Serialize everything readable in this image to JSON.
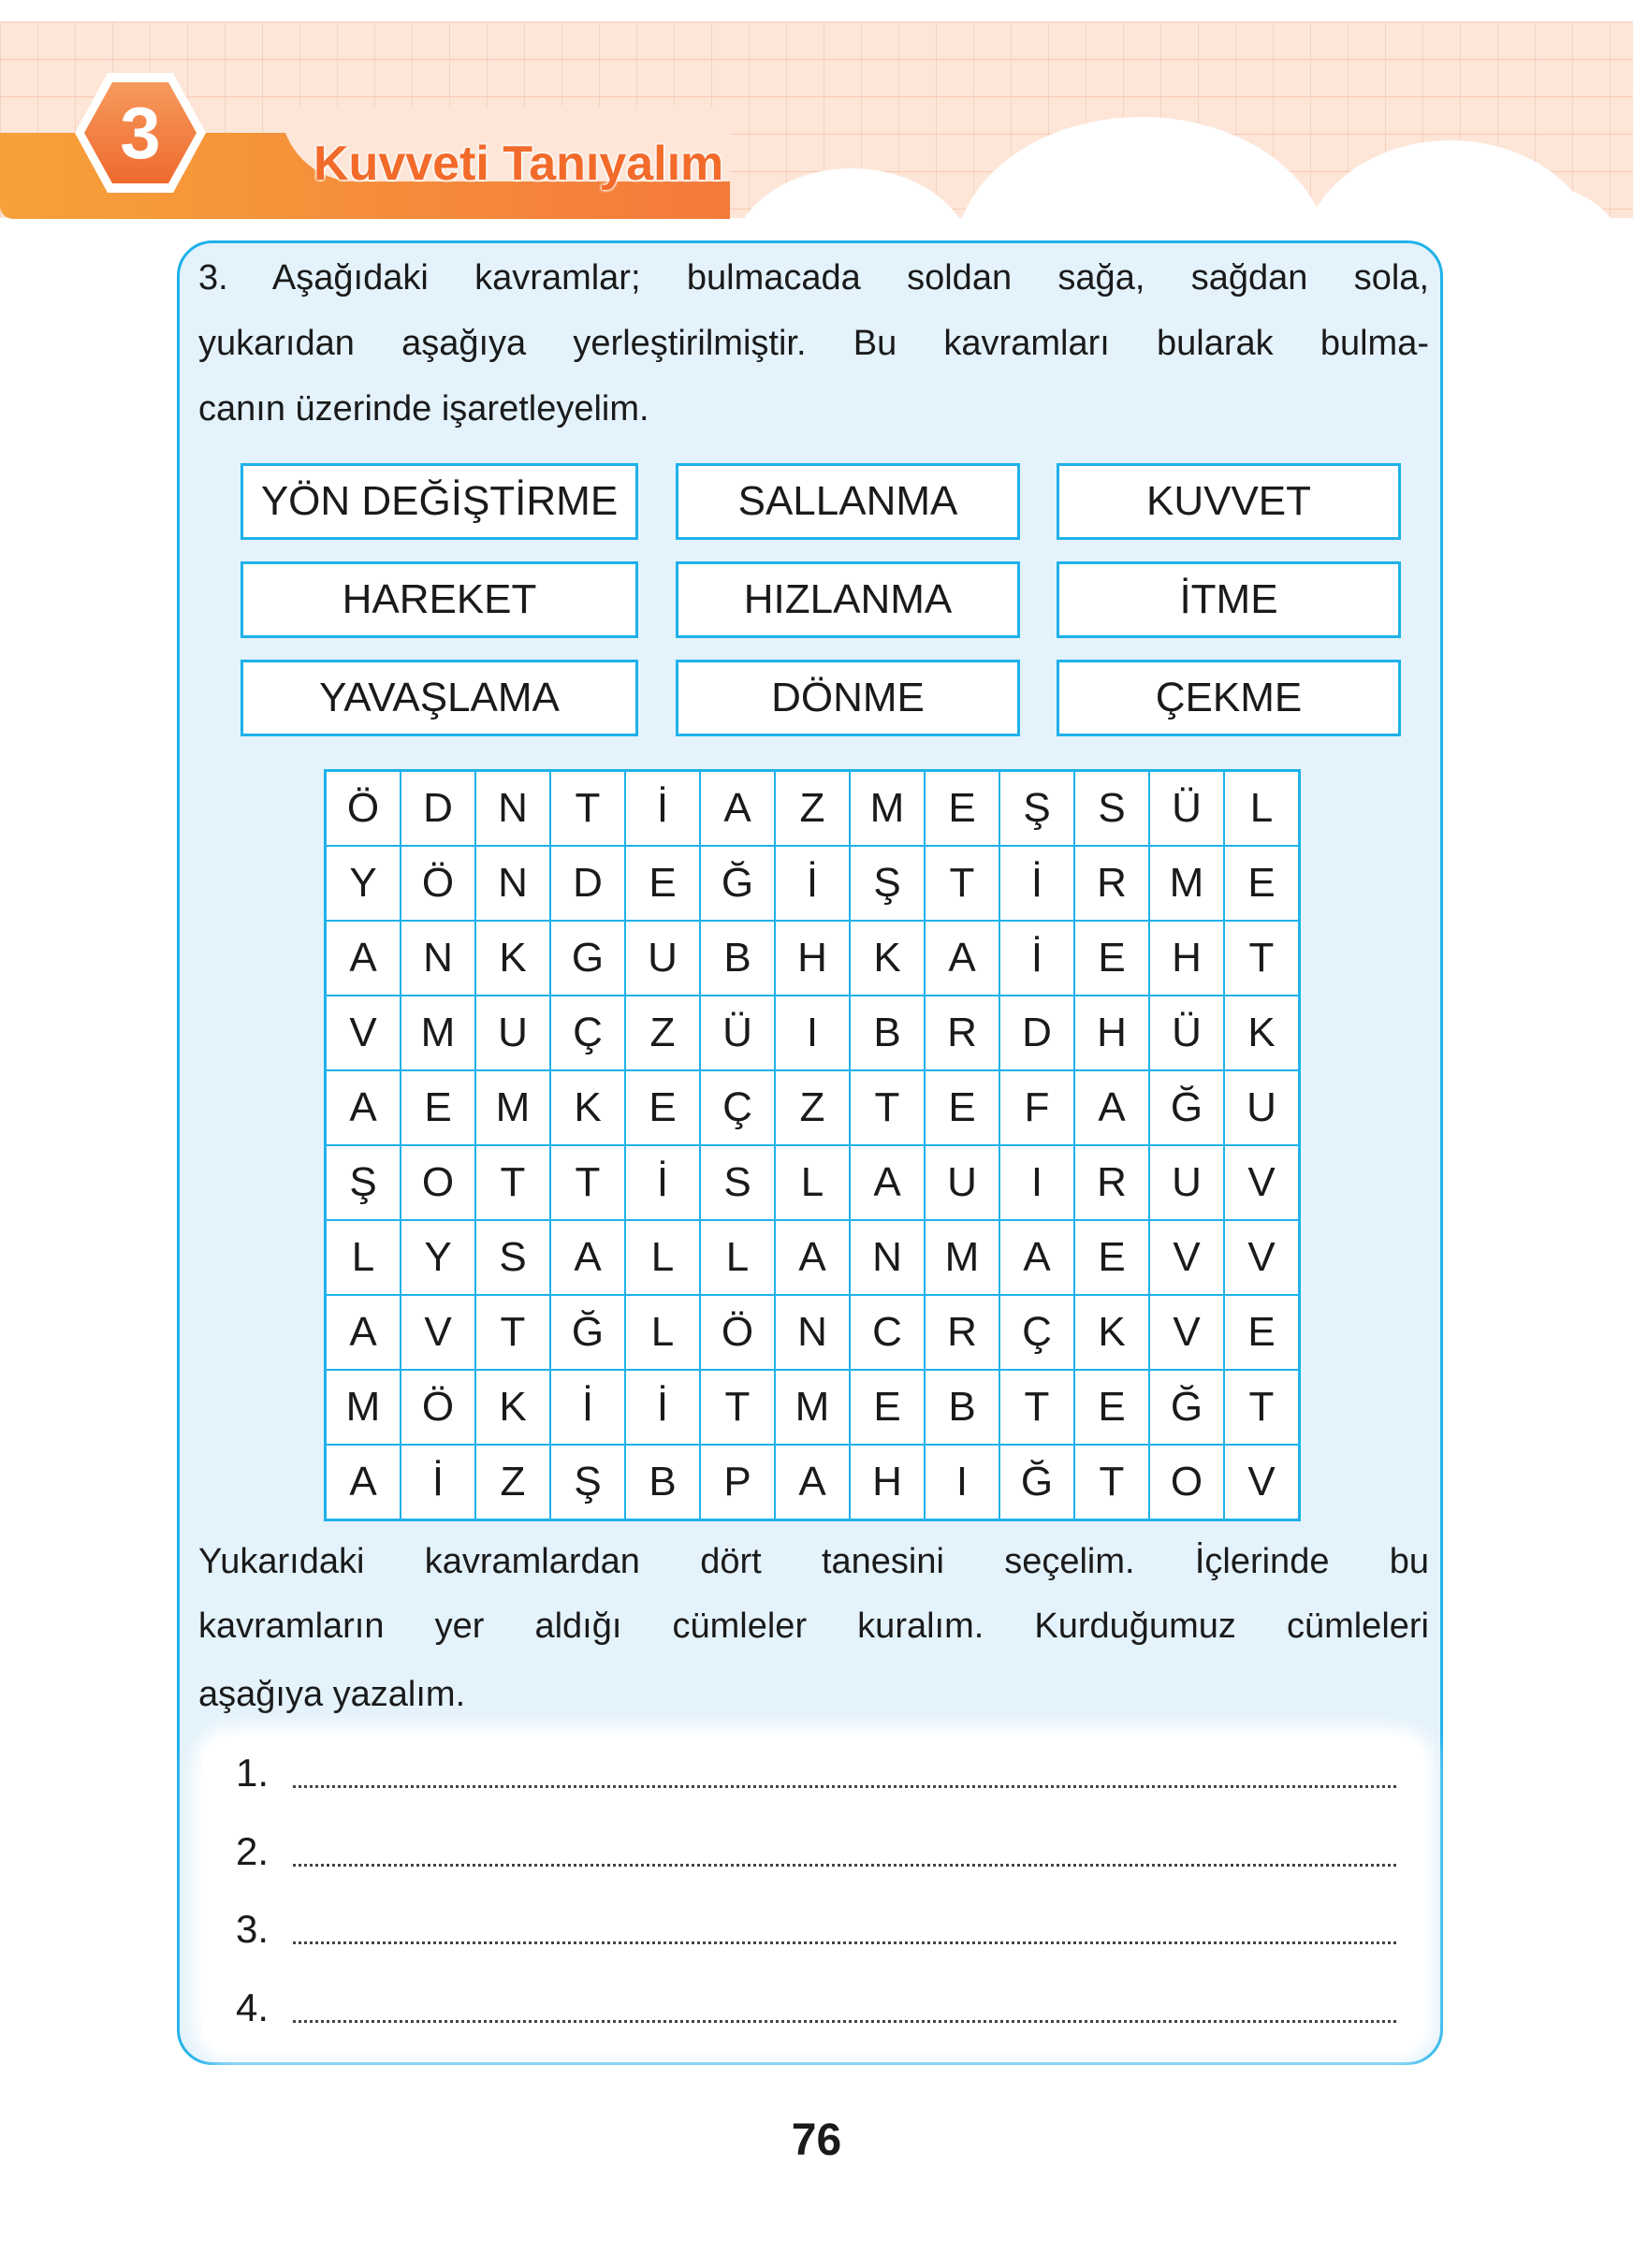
{
  "header": {
    "unit_number": "3",
    "title": "Kuvveti Tanıyalım",
    "accent_color": "#f26b2a",
    "border_color": "#1fb1ea"
  },
  "instruction": {
    "lines": [
      "3. Aşağıdaki kavramlar; bulmacada soldan sağa, sağdan sola,",
      "yukarıdan aşağıya yerleştirilmiştir. Bu kavramları bularak bulma-",
      "canın üzerinde işaretleyelim."
    ]
  },
  "words": [
    "YÖN DEĞİŞTİRME",
    "SALLANMA",
    "KUVVET",
    "HAREKET",
    "HIZLANMA",
    "İTME",
    "YAVAŞLAMA",
    "DÖNME",
    "ÇEKME"
  ],
  "grid": [
    [
      "Ö",
      "D",
      "N",
      "T",
      "İ",
      "A",
      "Z",
      "M",
      "E",
      "Ş",
      "S",
      "Ü",
      "L"
    ],
    [
      "Y",
      "Ö",
      "N",
      "D",
      "E",
      "Ğ",
      "İ",
      "Ş",
      "T",
      "İ",
      "R",
      "M",
      "E"
    ],
    [
      "A",
      "N",
      "K",
      "G",
      "U",
      "B",
      "H",
      "K",
      "A",
      "İ",
      "E",
      "H",
      "T"
    ],
    [
      "V",
      "M",
      "U",
      "Ç",
      "Z",
      "Ü",
      "I",
      "B",
      "R",
      "D",
      "H",
      "Ü",
      "K"
    ],
    [
      "A",
      "E",
      "M",
      "K",
      "E",
      "Ç",
      "Z",
      "T",
      "E",
      "F",
      "A",
      "Ğ",
      "U"
    ],
    [
      "Ş",
      "O",
      "T",
      "T",
      "İ",
      "S",
      "L",
      "A",
      "U",
      "I",
      "R",
      "U",
      "V"
    ],
    [
      "L",
      "Y",
      "S",
      "A",
      "L",
      "L",
      "A",
      "N",
      "M",
      "A",
      "E",
      "V",
      "V"
    ],
    [
      "A",
      "V",
      "T",
      "Ğ",
      "L",
      "Ö",
      "N",
      "C",
      "R",
      "Ç",
      "K",
      "V",
      "E"
    ],
    [
      "M",
      "Ö",
      "K",
      "İ",
      "İ",
      "T",
      "M",
      "E",
      "B",
      "T",
      "E",
      "Ğ",
      "T"
    ],
    [
      "A",
      "İ",
      "Z",
      "Ş",
      "B",
      "P",
      "A",
      "H",
      "I",
      "Ğ",
      "T",
      "O",
      "V"
    ]
  ],
  "task": {
    "lines": [
      "Yukarıdaki kavramlardan dört tanesini seçelim. İçlerinde bu",
      "kavramların yer aldığı cümleler kuralım. Kurduğumuz cümleleri",
      "aşağıya yazalım."
    ]
  },
  "answers": [
    "1.",
    "2.",
    "3.",
    "4."
  ],
  "page_number": "76"
}
